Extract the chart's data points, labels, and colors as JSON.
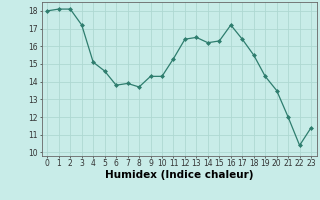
{
  "x": [
    0,
    1,
    2,
    3,
    4,
    5,
    6,
    7,
    8,
    9,
    10,
    11,
    12,
    13,
    14,
    15,
    16,
    17,
    18,
    19,
    20,
    21,
    22,
    23
  ],
  "y": [
    18.0,
    18.1,
    18.1,
    17.2,
    15.1,
    14.6,
    13.8,
    13.9,
    13.7,
    14.3,
    14.3,
    15.3,
    16.4,
    16.5,
    16.2,
    16.3,
    17.2,
    16.4,
    15.5,
    14.3,
    13.5,
    12.0,
    10.4,
    11.4
  ],
  "line_color": "#2e7d6e",
  "marker": "D",
  "marker_size": 2.0,
  "bg_color": "#c8ece8",
  "grid_color": "#aed8d2",
  "xlabel": "Humidex (Indice chaleur)",
  "ylim": [
    9.8,
    18.5
  ],
  "xlim": [
    -0.5,
    23.5
  ],
  "yticks": [
    10,
    11,
    12,
    13,
    14,
    15,
    16,
    17,
    18
  ],
  "xticks": [
    0,
    1,
    2,
    3,
    4,
    5,
    6,
    7,
    8,
    9,
    10,
    11,
    12,
    13,
    14,
    15,
    16,
    17,
    18,
    19,
    20,
    21,
    22,
    23
  ],
  "tick_label_fontsize": 5.5,
  "xlabel_fontsize": 7.5,
  "linewidth": 0.9
}
